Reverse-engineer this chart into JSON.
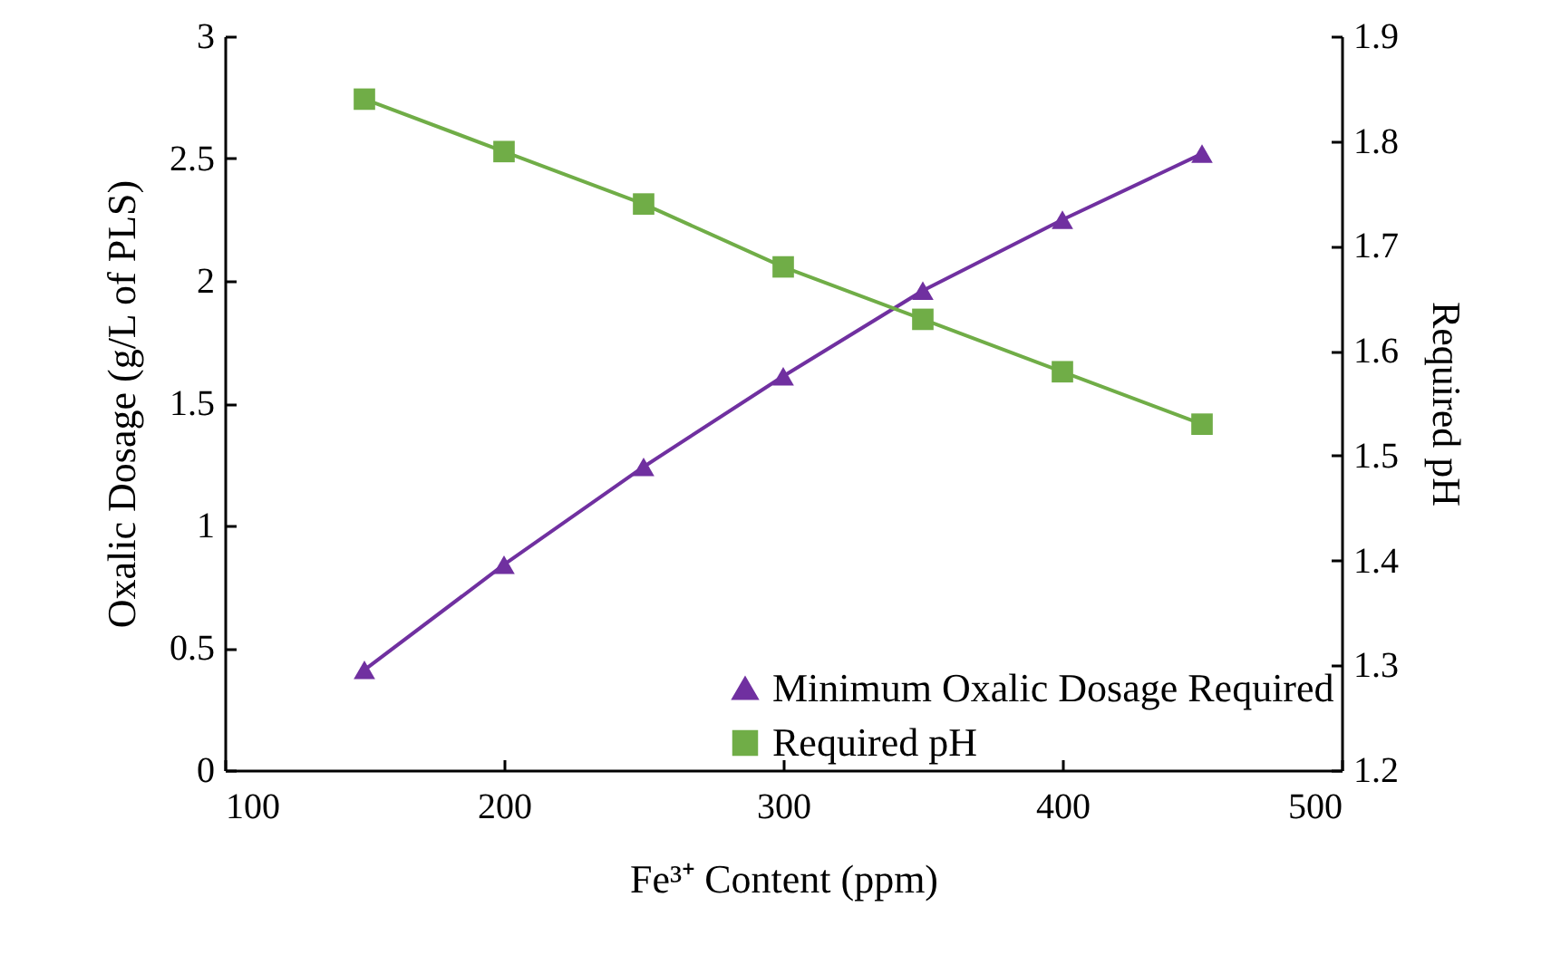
{
  "chart_data": {
    "type": "line",
    "xlabel": "Fe³⁺ Content (ppm)",
    "ylabel": "Oxalic Dosage (g/L of PLS)",
    "y2label": "Required pH",
    "x": [
      150,
      200,
      250,
      300,
      350,
      400,
      450
    ],
    "series": [
      {
        "name": "Minimum Oxalic Dosage Required",
        "color": "#7030a0",
        "marker": "triangle",
        "values": [
          0.41,
          0.84,
          1.24,
          1.61,
          1.96,
          2.25,
          2.52
        ]
      },
      {
        "name": "Required pH",
        "color": "#70ad47",
        "marker": "square",
        "axis": "y2",
        "values": [
          1.84,
          1.79,
          1.74,
          1.68,
          1.63,
          1.58,
          1.53
        ]
      }
    ],
    "xlim": [
      100,
      500
    ],
    "xticks": [
      100,
      200,
      300,
      400,
      500
    ],
    "ylim": [
      0,
      3
    ],
    "yticks": [
      0,
      0.5,
      1,
      1.5,
      2,
      2.5,
      3
    ],
    "y2lim": [
      1.2,
      1.9
    ],
    "y2ticks": [
      1.2,
      1.3,
      1.4,
      1.5,
      1.6,
      1.7,
      1.8,
      1.9
    ],
    "grid": false,
    "legend": "bottom right",
    "line_style": "solid"
  }
}
